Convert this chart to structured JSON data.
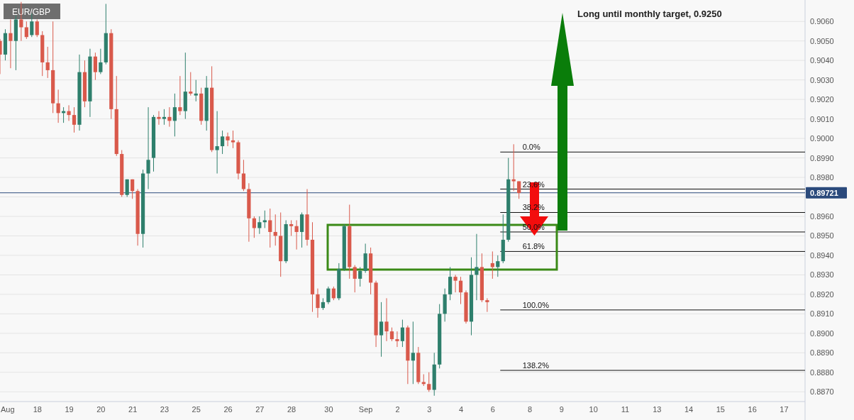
{
  "chart_data": {
    "type": "candlestick",
    "title": "EUR/GBP",
    "categories": [
      null,
      "Aug",
      null,
      null,
      null,
      null,
      null,
      "18",
      null,
      null,
      null,
      null,
      null,
      "19",
      null,
      null,
      null,
      null,
      null,
      "20",
      null,
      null,
      null,
      null,
      null,
      "21",
      null,
      null,
      null,
      null,
      null,
      "23",
      null,
      null,
      null,
      null,
      null,
      "25",
      null,
      null,
      null,
      null,
      null,
      "26",
      null,
      null,
      null,
      null,
      null,
      "27",
      null,
      null,
      null,
      null,
      null,
      "28",
      null,
      null,
      null,
      null,
      null,
      null,
      "30",
      null,
      null,
      null,
      null,
      null,
      null,
      "Sep",
      null,
      null,
      null,
      null,
      null,
      "2",
      null,
      null,
      null,
      null,
      null,
      "3",
      null,
      null,
      null,
      null,
      null,
      "4",
      null,
      null,
      null,
      null,
      null,
      "6",
      null,
      null,
      null,
      null,
      null,
      null,
      "8",
      null,
      null,
      null,
      null,
      null,
      "9",
      null,
      null,
      null,
      null,
      null,
      "10",
      null,
      null,
      null,
      null,
      null,
      "11",
      null,
      null,
      null,
      null,
      null,
      "13",
      null,
      null,
      null,
      null,
      null,
      "14",
      null,
      null,
      null,
      null,
      null,
      "15",
      null,
      null,
      null,
      null,
      null,
      "16",
      null,
      null,
      null,
      null,
      null,
      "17",
      null,
      null,
      null
    ],
    "ohlc": [
      [
        0.905,
        0.9051,
        0.9033,
        0.9043
      ],
      [
        0.9043,
        0.9056,
        0.904,
        0.9054
      ],
      [
        0.9054,
        0.9061,
        0.9036,
        0.905
      ],
      [
        0.905,
        0.9063,
        0.9035,
        0.9061
      ],
      [
        0.9061,
        0.907,
        0.905,
        0.9057
      ],
      [
        0.9057,
        0.906,
        0.9051,
        0.9052
      ],
      [
        0.9053,
        0.9064,
        0.9052,
        0.906
      ],
      [
        0.906,
        0.9061,
        0.9052,
        0.9053
      ],
      [
        0.9053,
        0.9055,
        0.9032,
        0.9039
      ],
      [
        0.9039,
        0.9047,
        0.9031,
        0.9035
      ],
      [
        0.9035,
        0.906,
        0.9013,
        0.9018
      ],
      [
        0.9018,
        0.9025,
        0.9008,
        0.9013
      ],
      [
        0.9013,
        0.9016,
        0.9008,
        0.9014
      ],
      [
        0.9014,
        0.9017,
        0.9009,
        0.9012
      ],
      [
        0.9012,
        0.9016,
        0.9003,
        0.9007
      ],
      [
        0.9007,
        0.9043,
        0.9004,
        0.9034
      ],
      [
        0.9034,
        0.904,
        0.9016,
        0.9019
      ],
      [
        0.9019,
        0.9046,
        0.9011,
        0.9042
      ],
      [
        0.9042,
        0.9044,
        0.903,
        0.9034
      ],
      [
        0.9034,
        0.9046,
        0.9033,
        0.9039
      ],
      [
        0.9039,
        0.9069,
        0.9038,
        0.9054
      ],
      [
        0.9054,
        0.9056,
        0.901,
        0.9015
      ],
      [
        0.9015,
        0.9032,
        0.8991,
        0.8992
      ],
      [
        0.8992,
        0.8994,
        0.897,
        0.8971
      ],
      [
        0.8971,
        0.8979,
        0.897,
        0.8979
      ],
      [
        0.8979,
        0.8979,
        0.8969,
        0.8973
      ],
      [
        0.8973,
        0.8974,
        0.8945,
        0.8951
      ],
      [
        0.8951,
        0.8984,
        0.8944,
        0.8982
      ],
      [
        0.8982,
        0.9016,
        0.8974,
        0.8989
      ],
      [
        0.899,
        0.9012,
        0.8983,
        0.9011
      ],
      [
        0.9011,
        0.9014,
        0.9007,
        0.901
      ],
      [
        0.901,
        0.9015,
        0.9007,
        0.9011
      ],
      [
        0.9011,
        0.9016,
        0.9006,
        0.9009
      ],
      [
        0.9009,
        0.9023,
        0.9001,
        0.9016
      ],
      [
        0.9016,
        0.9032,
        0.9012,
        0.9014
      ],
      [
        0.9014,
        0.9044,
        0.901,
        0.9024
      ],
      [
        0.9024,
        0.9034,
        0.9022,
        0.9023
      ],
      [
        0.9022,
        0.903,
        0.9019,
        0.9023
      ],
      [
        0.9023,
        0.9026,
        0.9007,
        0.9009
      ],
      [
        0.9009,
        0.9032,
        0.9004,
        0.9026
      ],
      [
        0.9026,
        0.9037,
        0.8993,
        0.8994
      ],
      [
        0.8994,
        0.9014,
        0.8982,
        0.8996
      ],
      [
        0.8996,
        0.9004,
        0.8992,
        0.9001
      ],
      [
        0.9001,
        0.9003,
        0.8996,
        0.8999
      ],
      [
        0.8999,
        0.9004,
        0.8995,
        0.8998
      ],
      [
        0.8998,
        0.8999,
        0.8979,
        0.8982
      ],
      [
        0.8982,
        0.8989,
        0.8973,
        0.8974
      ],
      [
        0.8974,
        0.8977,
        0.8947,
        0.8959
      ],
      [
        0.8959,
        0.896,
        0.8949,
        0.8954
      ],
      [
        0.8954,
        0.896,
        0.8951,
        0.8957
      ],
      [
        0.8957,
        0.8963,
        0.8954,
        0.8958
      ],
      [
        0.8958,
        0.8964,
        0.8944,
        0.8952
      ],
      [
        0.8952,
        0.8961,
        0.8945,
        0.895
      ],
      [
        0.895,
        0.8962,
        0.8929,
        0.8937
      ],
      [
        0.8937,
        0.8958,
        0.8936,
        0.8956
      ],
      [
        0.8956,
        0.8958,
        0.895,
        0.8955
      ],
      [
        0.8955,
        0.8958,
        0.8943,
        0.8952
      ],
      [
        0.8952,
        0.8962,
        0.8944,
        0.8961
      ],
      [
        0.8961,
        0.8974,
        0.8945,
        0.8948
      ],
      [
        0.8948,
        0.8957,
        0.8911,
        0.892
      ],
      [
        0.892,
        0.8923,
        0.8908,
        0.8913
      ],
      [
        0.8913,
        0.8918,
        0.8912,
        0.8916
      ],
      [
        0.8916,
        0.8924,
        0.8915,
        0.8923
      ],
      [
        0.8923,
        0.8924,
        0.8917,
        0.8918
      ],
      [
        0.8918,
        0.8936,
        0.8917,
        0.8933
      ],
      [
        0.8933,
        0.8956,
        0.8932,
        0.8955
      ],
      [
        0.8955,
        0.8966,
        0.8928,
        0.8934
      ],
      [
        0.8934,
        0.8935,
        0.8921,
        0.8928
      ],
      [
        0.8928,
        0.8934,
        0.8924,
        0.8932
      ],
      [
        0.8932,
        0.8946,
        0.8931,
        0.8941
      ],
      [
        0.8941,
        0.8944,
        0.892,
        0.8926
      ],
      [
        0.8926,
        0.8927,
        0.8893,
        0.8899
      ],
      [
        0.8899,
        0.8916,
        0.8888,
        0.8906
      ],
      [
        0.8906,
        0.8918,
        0.8896,
        0.8901
      ],
      [
        0.8901,
        0.8903,
        0.8896,
        0.8897
      ],
      [
        0.8897,
        0.8901,
        0.8893,
        0.8896
      ],
      [
        0.8896,
        0.8907,
        0.8893,
        0.8903
      ],
      [
        0.8903,
        0.8904,
        0.8874,
        0.8886
      ],
      [
        0.8886,
        0.8906,
        0.8874,
        0.889
      ],
      [
        0.889,
        0.8893,
        0.8874,
        0.8875
      ],
      [
        0.8875,
        0.8879,
        0.8873,
        0.8874
      ],
      [
        0.8874,
        0.888,
        0.887,
        0.8871
      ],
      [
        0.8871,
        0.889,
        0.8868,
        0.8884
      ],
      [
        0.8884,
        0.8915,
        0.8882,
        0.891
      ],
      [
        0.891,
        0.8923,
        0.8906,
        0.892
      ],
      [
        0.892,
        0.8934,
        0.8917,
        0.8929
      ],
      [
        0.8929,
        0.893,
        0.8921,
        0.8927
      ],
      [
        0.8927,
        0.8929,
        0.8915,
        0.8921
      ],
      [
        0.8921,
        0.8922,
        0.8905,
        0.8906
      ],
      [
        0.8906,
        0.8939,
        0.8899,
        0.893
      ],
      [
        0.893,
        0.8951,
        0.8917,
        0.8934
      ],
      [
        0.8934,
        0.8941,
        0.8916,
        0.8917
      ],
      [
        0.8917,
        0.8918,
        0.8911,
        0.8916
      ],
      [
        0.8936,
        0.8942,
        0.8928,
        0.8934
      ],
      [
        0.8934,
        0.894,
        0.8929,
        0.8937
      ],
      [
        0.8937,
        0.8961,
        0.8936,
        0.8948
      ],
      [
        0.8948,
        0.899,
        0.8947,
        0.8979
      ],
      [
        0.8979,
        0.8997,
        0.8973,
        0.8978
      ],
      [
        0.8978,
        0.8978,
        0.8969,
        0.8972
      ],
      null,
      null,
      null,
      null,
      null,
      null,
      null,
      null,
      null,
      null,
      null,
      null,
      null,
      null,
      null,
      null,
      null,
      null,
      null,
      null,
      null,
      null,
      null,
      null,
      null,
      null,
      null,
      null,
      null,
      null,
      null,
      null,
      null,
      null,
      null,
      null,
      null,
      null,
      null,
      null,
      null,
      null,
      null,
      null,
      null,
      null,
      null,
      null,
      null,
      null,
      null,
      null,
      null
    ],
    "colors": [
      "#d9594b",
      "#2e7f6c",
      "#d9594b",
      "#2e7f6c",
      "#d9594b",
      "#d9594b",
      "#2e7f6c",
      "#d9594b",
      "#d9594b",
      "#d9594b",
      "#d9594b",
      "#d9594b",
      "#2e7f6c",
      "#d9594b",
      "#d9594b",
      "#2e7f6c",
      "#d9594b",
      "#2e7f6c",
      "#d9594b",
      "#2e7f6c",
      "#2e7f6c",
      "#d9594b",
      "#d9594b",
      "#d9594b",
      "#2e7f6c",
      "#d9594b",
      "#d9594b",
      "#2e7f6c",
      "#2e7f6c",
      "#2e7f6c",
      "#d9594b",
      "#2e7f6c",
      "#d9594b",
      "#2e7f6c",
      "#d9594b",
      "#2e7f6c",
      "#d9594b",
      "#2e7f6c",
      "#d9594b",
      "#2e7f6c",
      "#d9594b",
      "#2e7f6c",
      "#2e7f6c",
      "#d9594b",
      "#d9594b",
      "#d9594b",
      "#d9594b",
      "#d9594b",
      "#d9594b",
      "#2e7f6c",
      "#2e7f6c",
      "#d9594b",
      "#d9594b",
      "#d9594b",
      "#2e7f6c",
      "#d9594b",
      "#d9594b",
      "#2e7f6c",
      "#d9594b",
      "#d9594b",
      "#d9594b",
      "#2e7f6c",
      "#2e7f6c",
      "#d9594b",
      "#2e7f6c",
      "#2e7f6c",
      "#d9594b",
      "#d9594b",
      "#2e7f6c",
      "#2e7f6c",
      "#d9594b",
      "#d9594b",
      "#2e7f6c",
      "#d9594b",
      "#d9594b",
      "#d9594b",
      "#2e7f6c",
      "#d9594b",
      "#2e7f6c",
      "#d9594b",
      "#d9594b",
      "#d9594b",
      "#2e7f6c",
      "#2e7f6c",
      "#2e7f6c",
      "#2e7f6c",
      "#d9594b",
      "#d9594b",
      "#d9594b",
      "#2e7f6c",
      "#2e7f6c",
      "#d9594b",
      "#d9594b",
      "#d9594b",
      "#2e7f6c",
      "#2e7f6c",
      "#2e7f6c",
      "#d9594b",
      "#d9594b",
      null,
      null,
      null,
      null,
      null,
      null,
      null,
      null,
      null,
      null,
      null,
      null,
      null,
      null,
      null,
      null,
      null,
      null,
      null,
      null,
      null,
      null,
      null,
      null,
      null,
      null,
      null,
      null,
      null,
      null,
      null,
      null,
      null,
      null,
      null,
      null,
      null,
      null,
      null,
      null,
      null,
      null,
      null,
      null,
      null,
      null,
      null,
      null,
      null,
      null,
      null,
      null,
      null
    ],
    "ylim": [
      0.8865,
      0.9071
    ],
    "yticks": [
      {
        "value": 0.887,
        "label": "0.8870"
      },
      {
        "value": 0.888,
        "label": "0.8880"
      },
      {
        "value": 0.889,
        "label": "0.8890"
      },
      {
        "value": 0.89,
        "label": "0.8900"
      },
      {
        "value": 0.891,
        "label": "0.8910"
      },
      {
        "value": 0.892,
        "label": "0.8920"
      },
      {
        "value": 0.893,
        "label": "0.8930"
      },
      {
        "value": 0.894,
        "label": "0.8940"
      },
      {
        "value": 0.895,
        "label": "0.8950"
      },
      {
        "value": 0.896,
        "label": "0.8960"
      },
      {
        "value": 0.897,
        "label": null
      },
      {
        "value": 0.898,
        "label": "0.8980"
      },
      {
        "value": 0.899,
        "label": "0.8990"
      },
      {
        "value": 0.9,
        "label": "0.9000"
      },
      {
        "value": 0.901,
        "label": "0.9010"
      },
      {
        "value": 0.902,
        "label": "0.9020"
      },
      {
        "value": 0.903,
        "label": "0.9030"
      },
      {
        "value": 0.904,
        "label": "0.9040"
      },
      {
        "value": 0.905,
        "label": "0.9050"
      },
      {
        "value": 0.906,
        "label": "0.9060"
      }
    ],
    "grid": "y",
    "ref_lines": [
      {
        "axis": "y",
        "value": 0.89721,
        "label": "0.89721",
        "color": "#2b4a7c"
      },
      {
        "axis": "y",
        "value": 0.8993,
        "color": "#111111"
      },
      {
        "axis": "y",
        "value": 0.8974,
        "color": "#111111"
      },
      {
        "axis": "y",
        "value": 0.8962,
        "color": "#111111"
      },
      {
        "axis": "y",
        "value": 0.8952,
        "color": "#111111"
      },
      {
        "axis": "y",
        "value": 0.8942,
        "color": "#111111"
      },
      {
        "axis": "y",
        "value": 0.8912,
        "color": "#111111"
      },
      {
        "axis": "y",
        "value": 0.8881,
        "color": "#111111"
      }
    ],
    "annotations": [
      "Long until monthly target, 0.9250",
      {
        "text": "0.0%",
        "y": 0.8993
      },
      {
        "text": "23.6%",
        "y": 0.8974
      },
      {
        "text": "38.2%",
        "y": 0.8962
      },
      {
        "text": "50.0%",
        "y": 0.8952
      },
      {
        "text": "61.8%",
        "y": 0.8942
      },
      {
        "text": "100.0%",
        "y": 0.8912
      },
      {
        "text": "138.2%",
        "y": 0.8881
      }
    ]
  }
}
